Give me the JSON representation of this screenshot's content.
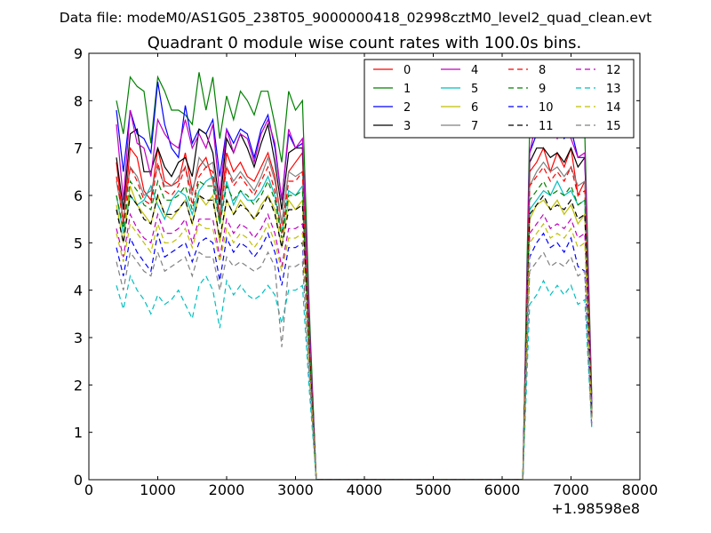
{
  "chart_data": {
    "type": "line",
    "suptitle": "Data file: modeM0/AS1G05_238T05_9000000418_02998cztM0_level2_quad_clean.evt",
    "title": "Quadrant 0 module wise count rates with 100.0s bins.",
    "xlabel": "",
    "ylabel": "",
    "x_offset_label": "+1.98598e8",
    "xlim": [
      0,
      8000
    ],
    "ylim": [
      0,
      9
    ],
    "x_ticks": [
      "0",
      "1000",
      "2000",
      "3000",
      "4000",
      "5000",
      "6000",
      "7000",
      "8000"
    ],
    "y_ticks": [
      "0",
      "1",
      "2",
      "3",
      "4",
      "5",
      "6",
      "7",
      "8",
      "9"
    ],
    "legend_position": "top-right",
    "gap": {
      "start": 3300,
      "end": 6300
    },
    "x": [
      400,
      500,
      600,
      700,
      800,
      900,
      1000,
      1100,
      1200,
      1300,
      1400,
      1500,
      1600,
      1700,
      1800,
      1900,
      2000,
      2100,
      2200,
      2300,
      2400,
      2500,
      2600,
      2700,
      2800,
      2900,
      3000,
      3100,
      3200,
      3300,
      3400,
      6300,
      6400,
      6500,
      6600,
      6700,
      6800,
      6900,
      7000,
      7100,
      7200,
      7300
    ],
    "series": [
      {
        "name": "0",
        "color": "#ff0000",
        "dash": "solid",
        "values": [
          6.7,
          5.4,
          7.0,
          6.8,
          6.1,
          5.9,
          7.0,
          6.3,
          6.2,
          6.3,
          6.9,
          6.1,
          6.6,
          6.8,
          6.3,
          5.5,
          6.9,
          6.5,
          6.7,
          6.4,
          6.3,
          6.6,
          6.9,
          6.4,
          5.4,
          6.5,
          6.7,
          6.9,
          3.0,
          0.0,
          0.0,
          0.0,
          6.5,
          6.7,
          7.0,
          6.5,
          6.9,
          6.6,
          7.0,
          6.0,
          6.3,
          1.4
        ]
      },
      {
        "name": "1",
        "color": "#008000",
        "dash": "solid",
        "values": [
          8.0,
          7.3,
          8.5,
          8.3,
          8.2,
          7.1,
          8.5,
          8.2,
          7.8,
          7.8,
          7.7,
          7.5,
          8.6,
          7.8,
          8.5,
          7.2,
          8.1,
          7.6,
          8.2,
          8.0,
          7.7,
          8.2,
          8.2,
          7.5,
          6.7,
          8.2,
          7.8,
          8.0,
          3.6,
          0.0,
          0.0,
          0.0,
          7.5,
          7.9,
          8.1,
          8.0,
          7.4,
          8.5,
          7.8,
          7.3,
          7.3,
          1.8
        ]
      },
      {
        "name": "2",
        "color": "#0000ff",
        "dash": "solid",
        "values": [
          7.8,
          6.5,
          7.8,
          7.3,
          7.2,
          6.9,
          8.4,
          7.5,
          7.0,
          6.8,
          7.9,
          7.1,
          7.4,
          7.3,
          7.6,
          6.4,
          7.4,
          7.1,
          7.4,
          7.3,
          6.8,
          7.4,
          7.7,
          7.0,
          5.9,
          7.3,
          7.0,
          7.1,
          3.3,
          0.0,
          0.0,
          0.0,
          6.9,
          7.3,
          7.6,
          7.3,
          7.5,
          7.2,
          7.4,
          6.8,
          6.8,
          1.6
        ]
      },
      {
        "name": "3",
        "color": "#000000",
        "dash": "solid",
        "values": [
          6.8,
          5.7,
          7.3,
          7.4,
          6.5,
          6.5,
          7.0,
          6.6,
          6.4,
          6.7,
          6.8,
          6.4,
          7.4,
          7.3,
          6.9,
          5.8,
          7.2,
          6.9,
          7.3,
          7.0,
          6.6,
          7.1,
          7.5,
          6.7,
          5.7,
          6.9,
          7.0,
          7.0,
          3.2,
          0.0,
          0.0,
          0.0,
          6.7,
          7.0,
          7.0,
          6.8,
          6.9,
          6.7,
          7.0,
          6.6,
          6.8,
          1.5
        ]
      },
      {
        "name": "4",
        "color": "#bf00bf",
        "dash": "solid",
        "values": [
          7.5,
          5.9,
          7.8,
          7.1,
          7.0,
          6.4,
          7.6,
          7.3,
          7.1,
          7.0,
          7.6,
          7.0,
          7.3,
          7.0,
          7.5,
          6.0,
          7.4,
          6.9,
          7.3,
          7.2,
          6.7,
          7.3,
          7.6,
          7.1,
          5.9,
          7.4,
          7.0,
          7.2,
          3.3,
          0.0,
          0.0,
          0.0,
          6.9,
          7.6,
          7.9,
          7.6,
          7.2,
          7.6,
          7.2,
          6.8,
          6.9,
          1.7
        ]
      },
      {
        "name": "5",
        "color": "#00bfbf",
        "dash": "solid",
        "values": [
          6.0,
          5.2,
          6.0,
          5.8,
          5.9,
          6.2,
          5.8,
          5.5,
          5.9,
          6.1,
          6.0,
          5.6,
          6.1,
          6.3,
          6.4,
          5.4,
          6.3,
          5.8,
          6.1,
          5.9,
          5.9,
          6.1,
          6.4,
          6.0,
          5.2,
          6.1,
          6.0,
          6.2,
          2.8,
          0.0,
          0.0,
          0.0,
          5.7,
          5.9,
          6.1,
          6.0,
          6.3,
          6.0,
          6.1,
          5.8,
          5.9,
          1.3
        ]
      },
      {
        "name": "6",
        "color": "#bfbf00",
        "dash": "solid",
        "values": [
          5.8,
          5.0,
          6.2,
          5.8,
          5.6,
          5.4,
          6.0,
          5.6,
          5.5,
          5.7,
          5.9,
          5.4,
          6.0,
          5.8,
          6.0,
          5.0,
          5.9,
          5.6,
          5.9,
          5.7,
          5.5,
          5.8,
          6.0,
          5.7,
          4.9,
          5.9,
          5.7,
          5.9,
          2.7,
          0.0,
          0.0,
          0.0,
          5.5,
          5.8,
          5.9,
          5.7,
          5.9,
          5.6,
          5.8,
          5.4,
          5.6,
          1.3
        ]
      },
      {
        "name": "7",
        "color": "#808080",
        "dash": "solid",
        "values": [
          6.3,
          5.5,
          6.6,
          6.4,
          6.0,
          6.1,
          6.6,
          6.2,
          6.2,
          6.4,
          6.6,
          6.0,
          6.8,
          6.6,
          6.7,
          5.6,
          6.6,
          6.3,
          6.5,
          6.3,
          6.1,
          6.4,
          6.8,
          6.3,
          5.4,
          6.5,
          6.4,
          6.5,
          3.0,
          0.0,
          0.0,
          0.0,
          6.2,
          6.5,
          6.7,
          6.5,
          6.6,
          6.4,
          6.6,
          6.2,
          6.3,
          1.4
        ]
      },
      {
        "name": "8",
        "color": "#ff0000",
        "dash": "dashed",
        "values": [
          6.4,
          5.4,
          6.6,
          6.3,
          5.9,
          5.8,
          6.7,
          6.1,
          6.0,
          6.2,
          6.6,
          5.8,
          6.4,
          6.6,
          6.5,
          5.5,
          6.6,
          6.2,
          6.4,
          6.2,
          6.0,
          6.3,
          6.6,
          6.1,
          5.2,
          6.3,
          6.3,
          6.5,
          2.9,
          0.0,
          0.0,
          0.0,
          6.2,
          6.4,
          6.6,
          6.3,
          6.5,
          6.3,
          6.6,
          6.0,
          6.1,
          1.4
        ]
      },
      {
        "name": "9",
        "color": "#008000",
        "dash": "dashed",
        "values": [
          6.0,
          5.3,
          6.3,
          6.1,
          5.8,
          5.7,
          6.3,
          5.9,
          5.9,
          6.0,
          6.2,
          5.7,
          6.3,
          6.2,
          6.2,
          5.4,
          6.2,
          5.9,
          6.1,
          6.0,
          5.8,
          6.0,
          6.3,
          5.9,
          5.1,
          6.0,
          6.0,
          6.1,
          2.8,
          0.0,
          0.0,
          0.0,
          5.9,
          6.1,
          6.3,
          6.0,
          6.1,
          6.0,
          6.2,
          5.8,
          5.9,
          1.4
        ]
      },
      {
        "name": "10",
        "color": "#0000ff",
        "dash": "dashed",
        "values": [
          4.9,
          4.3,
          5.1,
          4.8,
          4.6,
          4.4,
          5.2,
          4.7,
          4.8,
          4.9,
          5.0,
          4.6,
          5.0,
          5.1,
          5.0,
          4.2,
          5.1,
          4.8,
          5.0,
          4.9,
          4.7,
          4.9,
          5.2,
          4.8,
          4.1,
          4.9,
          4.9,
          5.0,
          2.3,
          0.0,
          0.0,
          0.0,
          4.7,
          5.0,
          5.2,
          4.9,
          5.0,
          4.8,
          5.1,
          4.5,
          4.4,
          1.1
        ]
      },
      {
        "name": "11",
        "color": "#000000",
        "dash": "dashed",
        "values": [
          5.7,
          5.0,
          6.0,
          5.8,
          5.5,
          5.4,
          6.0,
          5.6,
          5.6,
          5.7,
          5.9,
          5.4,
          6.0,
          5.9,
          5.9,
          5.1,
          5.9,
          5.6,
          5.8,
          5.7,
          5.5,
          5.7,
          6.0,
          5.6,
          4.9,
          5.7,
          5.7,
          5.8,
          2.7,
          0.0,
          0.0,
          0.0,
          5.6,
          5.8,
          6.0,
          5.7,
          5.8,
          5.7,
          5.9,
          5.5,
          5.6,
          1.3
        ]
      },
      {
        "name": "12",
        "color": "#bf00bf",
        "dash": "dashed",
        "values": [
          5.3,
          4.7,
          5.6,
          5.3,
          5.1,
          5.0,
          5.6,
          5.2,
          5.2,
          5.3,
          5.5,
          5.0,
          5.5,
          5.5,
          5.5,
          4.7,
          5.5,
          5.2,
          5.4,
          5.3,
          5.1,
          5.3,
          5.6,
          5.2,
          4.5,
          5.3,
          5.3,
          5.4,
          2.5,
          0.0,
          0.0,
          0.0,
          5.2,
          5.4,
          5.6,
          5.3,
          5.4,
          5.3,
          5.5,
          5.1,
          5.2,
          1.2
        ]
      },
      {
        "name": "13",
        "color": "#00bfbf",
        "dash": "dashed",
        "values": [
          4.1,
          3.6,
          4.3,
          4.0,
          3.8,
          3.5,
          3.9,
          3.7,
          3.8,
          4.0,
          3.7,
          3.4,
          4.1,
          4.3,
          4.0,
          3.2,
          4.2,
          3.9,
          4.1,
          3.9,
          3.8,
          3.9,
          4.1,
          3.9,
          3.3,
          4.0,
          4.0,
          4.1,
          1.9,
          0.0,
          0.0,
          0.0,
          3.7,
          3.9,
          4.2,
          3.9,
          4.1,
          3.9,
          4.1,
          3.7,
          3.8,
          1.1
        ]
      },
      {
        "name": "14",
        "color": "#bfbf00",
        "dash": "dashed",
        "values": [
          5.2,
          4.6,
          5.4,
          5.2,
          5.0,
          4.8,
          5.4,
          5.0,
          5.0,
          5.1,
          5.3,
          4.9,
          5.4,
          5.3,
          5.3,
          4.6,
          5.3,
          5.0,
          5.2,
          5.1,
          4.9,
          5.1,
          5.4,
          5.0,
          4.4,
          5.1,
          5.1,
          5.2,
          2.4,
          0.0,
          0.0,
          0.0,
          5.0,
          5.2,
          5.4,
          5.1,
          5.2,
          5.1,
          5.3,
          4.9,
          5.0,
          1.2
        ]
      },
      {
        "name": "15",
        "color": "#808080",
        "dash": "dashed",
        "values": [
          4.6,
          4.0,
          4.8,
          4.6,
          4.4,
          4.3,
          4.8,
          4.4,
          4.5,
          4.6,
          4.7,
          4.3,
          4.8,
          4.7,
          4.7,
          4.0,
          4.7,
          4.5,
          4.6,
          4.5,
          4.4,
          4.5,
          4.8,
          4.5,
          2.8,
          4.5,
          4.5,
          4.6,
          2.2,
          0.0,
          0.0,
          0.0,
          4.4,
          4.6,
          4.8,
          4.5,
          4.6,
          4.5,
          4.7,
          4.3,
          4.4,
          1.1
        ]
      }
    ]
  }
}
